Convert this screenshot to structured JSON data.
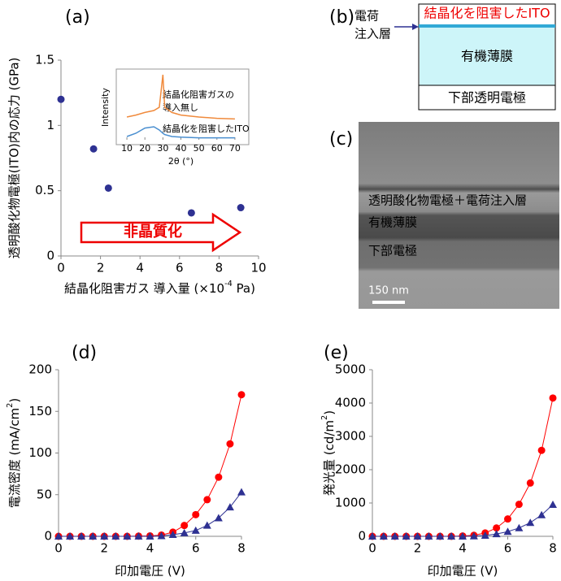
{
  "chart_data": [
    {
      "type": "scatter",
      "panel_label": "(a)",
      "ylabel": "透明酸化物電極(ITO)内の応力 (GPa)",
      "xlabel": {
        "text": "結晶化阻害ガス 導入量 (×10",
        "sup": "-4",
        "end": " Pa)"
      },
      "annotation": "非晶質化",
      "xlim": [
        0,
        10
      ],
      "xticks": [
        0,
        2,
        4,
        6,
        8,
        10
      ],
      "ylim": [
        0,
        1.5
      ],
      "yticks": [
        0,
        0.5,
        1,
        1.5
      ],
      "series": [
        {
          "color": "#2e3192",
          "marker": "circle",
          "x": [
            0,
            1.65,
            2.4,
            6.6,
            9.1
          ],
          "values": [
            1.2,
            0.82,
            0.52,
            0.33,
            0.37
          ]
        }
      ]
    },
    {
      "type": "line",
      "ylabel": "Intensity",
      "xlabel": "2θ (°)",
      "annotations": [
        "結晶化阻害ガスの",
        "導入無し",
        "結晶化を阻害したITO"
      ],
      "xlim": [
        5,
        75
      ],
      "xticks": [
        10,
        20,
        30,
        40,
        50,
        60,
        70
      ],
      "ylim": [
        0,
        1
      ],
      "x": [
        10,
        15,
        20,
        25,
        28,
        30,
        31,
        35,
        40,
        50,
        60,
        70
      ],
      "series": [
        {
          "color": "#f08a3c",
          "values": [
            0.35,
            0.38,
            0.42,
            0.45,
            0.5,
            1.0,
            0.5,
            0.42,
            0.38,
            0.35,
            0.33,
            0.32
          ]
        },
        {
          "color": "#4a8fd0",
          "values": [
            0.05,
            0.1,
            0.18,
            0.2,
            0.15,
            0.1,
            0.08,
            0.05,
            0.04,
            0.03,
            0.03,
            0.03
          ]
        }
      ]
    },
    {
      "type": "line",
      "panel_label": "(d)",
      "ylabel": {
        "text": "電流密度 (mA/cm",
        "sup": "2",
        "end": ")"
      },
      "xlabel": "印加電圧 (V)",
      "xlim": [
        0,
        8
      ],
      "xticks": [
        0,
        2,
        4,
        6,
        8
      ],
      "ylim": [
        0,
        200
      ],
      "yticks": [
        0,
        50,
        100,
        150,
        200
      ],
      "x": [
        0,
        0.5,
        1,
        1.5,
        2,
        2.5,
        3,
        3.5,
        4,
        4.5,
        5,
        5.5,
        6,
        6.5,
        7,
        7.5,
        8
      ],
      "series": [
        {
          "color": "#ff0000",
          "marker": "circle",
          "values": [
            0,
            0,
            0,
            0,
            0,
            0,
            0,
            0.2,
            0.5,
            1.5,
            5,
            13,
            26,
            44,
            71,
            111,
            170
          ]
        },
        {
          "color": "#2e3192",
          "marker": "triangle",
          "values": [
            0,
            0,
            0,
            0,
            0,
            0,
            0,
            0,
            0,
            0.5,
            2,
            4,
            7,
            13,
            22,
            35,
            53
          ]
        }
      ]
    },
    {
      "type": "line",
      "panel_label": "(e)",
      "ylabel": {
        "text": "発光量 (cd/m",
        "sup": "2",
        "end": ")"
      },
      "xlabel": "印加電圧 (V)",
      "xlim": [
        0,
        8
      ],
      "xticks": [
        0,
        2,
        4,
        6,
        8
      ],
      "ylim": [
        0,
        5000
      ],
      "yticks": [
        0,
        1000,
        2000,
        3000,
        4000,
        5000
      ],
      "x": [
        0,
        0.5,
        1,
        1.5,
        2,
        2.5,
        3,
        3.5,
        4,
        4.5,
        5,
        5.5,
        6,
        6.5,
        7,
        7.5,
        8
      ],
      "series": [
        {
          "color": "#ff0000",
          "marker": "circle",
          "values": [
            0,
            0,
            0,
            0,
            0,
            0,
            0,
            0,
            10,
            30,
            100,
            250,
            520,
            960,
            1600,
            2580,
            4150
          ]
        },
        {
          "color": "#2e3192",
          "marker": "triangle",
          "values": [
            0,
            0,
            0,
            0,
            0,
            0,
            0,
            0,
            0,
            5,
            25,
            70,
            140,
            250,
            410,
            640,
            950
          ]
        }
      ]
    }
  ],
  "diagram": {
    "panel_label": "(b)",
    "side_label": [
      "電荷",
      "注入層"
    ],
    "layers": [
      "結晶化を阻害したITO",
      "有機薄膜",
      "下部透明電極"
    ]
  },
  "image": {
    "panel_label": "(c)",
    "labels": [
      "透明酸化物電極＋電荷注入層",
      "有機薄膜",
      "下部電極"
    ],
    "scale_bar": "150 nm"
  }
}
